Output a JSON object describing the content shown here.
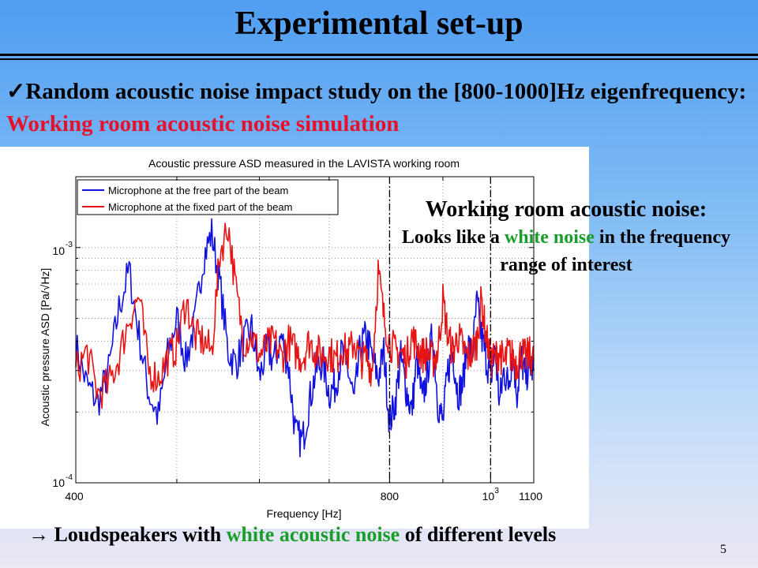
{
  "slide": {
    "title": "Experimental set-up",
    "bullet_check": "✓",
    "bullet_part1": "Random acoustic noise impact study on the [800-1000]Hz eigenfrequency: ",
    "bullet_part2": "Working room acoustic noise simulation",
    "callout_heading": "Working room acoustic noise:",
    "callout_line_a": "Looks like a ",
    "callout_green": "white noise",
    "callout_line_b": " in the frequency range of interest",
    "bottom_arrow": "→",
    "bottom_a": " Loudspeakers with ",
    "bottom_green": "white acoustic noise",
    "bottom_b": " of different levels",
    "page_number": "5"
  },
  "colors": {
    "series_blue": "#1010e0",
    "series_red": "#e81414",
    "text_red": "#e8102a",
    "text_green": "#1a9e2b"
  },
  "chart_data": {
    "type": "line",
    "title": "Acoustic pressure ASD measured in the LAVISTA working room",
    "xlabel": "Frequency [Hz]",
    "ylabel": "Acoustic pressure ASD [Pa/√Hz]",
    "x_scale": "log",
    "y_scale": "log",
    "xlim": [
      400,
      1100
    ],
    "ylim": [
      0.0001,
      0.002
    ],
    "x_tick_labels": [
      "400",
      "800",
      "10",
      "1100"
    ],
    "x_tick_exponent": "3",
    "y_tick_labels": [
      "10",
      "10"
    ],
    "y_tick_exponents": [
      "-3",
      "-4"
    ],
    "grid": true,
    "legend_position": "top-left",
    "vlines_dashdot": [
      800,
      1000
    ],
    "series": [
      {
        "name": "Microphone at the free part of the beam",
        "x": [
          400,
          410,
          420,
          430,
          440,
          450,
          460,
          470,
          480,
          490,
          500,
          510,
          520,
          530,
          540,
          550,
          560,
          570,
          580,
          590,
          600,
          610,
          620,
          630,
          640,
          650,
          660,
          670,
          680,
          690,
          700,
          710,
          720,
          730,
          740,
          750,
          760,
          770,
          780,
          790,
          800,
          810,
          820,
          830,
          840,
          850,
          860,
          870,
          880,
          890,
          900,
          910,
          920,
          930,
          940,
          950,
          960,
          970,
          980,
          990,
          1000,
          1010,
          1020,
          1030,
          1040,
          1050,
          1060,
          1070,
          1080,
          1090,
          1100
        ],
        "y": [
          0.00038,
          0.00026,
          0.00022,
          0.0003,
          0.00055,
          0.0008,
          0.00042,
          0.00024,
          0.00019,
          0.00035,
          0.0005,
          0.00033,
          0.00047,
          0.0009,
          0.00115,
          0.0007,
          0.00036,
          0.00032,
          0.0004,
          0.00045,
          0.00028,
          0.00037,
          0.00033,
          0.00042,
          0.00031,
          0.00016,
          0.00015,
          0.00022,
          0.0003,
          0.00033,
          0.00024,
          0.00026,
          0.00036,
          0.0003,
          0.00022,
          0.00038,
          0.00042,
          0.00034,
          0.00028,
          0.00036,
          0.00018,
          0.00022,
          0.00034,
          0.00025,
          0.0002,
          0.00034,
          0.00022,
          0.0003,
          0.00044,
          0.00022,
          0.00018,
          0.0003,
          0.00036,
          0.00024,
          0.00026,
          0.0004,
          0.00034,
          0.00058,
          0.00042,
          0.00034,
          0.00028,
          0.00036,
          0.00022,
          0.0003,
          0.00026,
          0.00036,
          0.00024,
          0.00034,
          0.00028,
          0.00032,
          0.0003
        ]
      },
      {
        "name": "Microphone at the fixed part of the beam",
        "x": [
          400,
          410,
          420,
          430,
          440,
          450,
          460,
          470,
          480,
          490,
          500,
          510,
          520,
          530,
          540,
          550,
          560,
          570,
          580,
          590,
          600,
          610,
          620,
          630,
          640,
          650,
          660,
          670,
          680,
          690,
          700,
          710,
          720,
          730,
          740,
          750,
          760,
          770,
          780,
          790,
          800,
          810,
          820,
          830,
          840,
          850,
          860,
          870,
          880,
          890,
          900,
          910,
          920,
          930,
          940,
          950,
          960,
          970,
          980,
          990,
          1000,
          1010,
          1020,
          1030,
          1040,
          1050,
          1060,
          1070,
          1080,
          1090,
          1100
        ],
        "y": [
          0.0003,
          0.00036,
          0.00024,
          0.00026,
          0.00034,
          0.0005,
          0.00062,
          0.0003,
          0.00028,
          0.00034,
          0.00038,
          0.0006,
          0.00042,
          0.0004,
          0.00036,
          0.00095,
          0.00125,
          0.00065,
          0.0004,
          0.00042,
          0.00035,
          0.00038,
          0.0004,
          0.00034,
          0.0004,
          0.00036,
          0.00034,
          0.0004,
          0.00036,
          0.00035,
          0.00036,
          0.00033,
          0.00038,
          0.00035,
          0.0004,
          0.00033,
          0.00034,
          0.0003,
          0.0008,
          0.0005,
          0.0004,
          0.00036,
          0.00036,
          0.00033,
          0.00042,
          0.00038,
          0.00035,
          0.00036,
          0.00033,
          0.00036,
          0.0006,
          0.00042,
          0.00036,
          0.00042,
          0.00038,
          0.00034,
          0.00036,
          0.0004,
          0.0006,
          0.00042,
          0.00033,
          0.00034,
          0.00036,
          0.00032,
          0.00036,
          0.00034,
          0.00032,
          0.00036,
          0.00034,
          0.00035,
          0.00033
        ]
      }
    ]
  }
}
